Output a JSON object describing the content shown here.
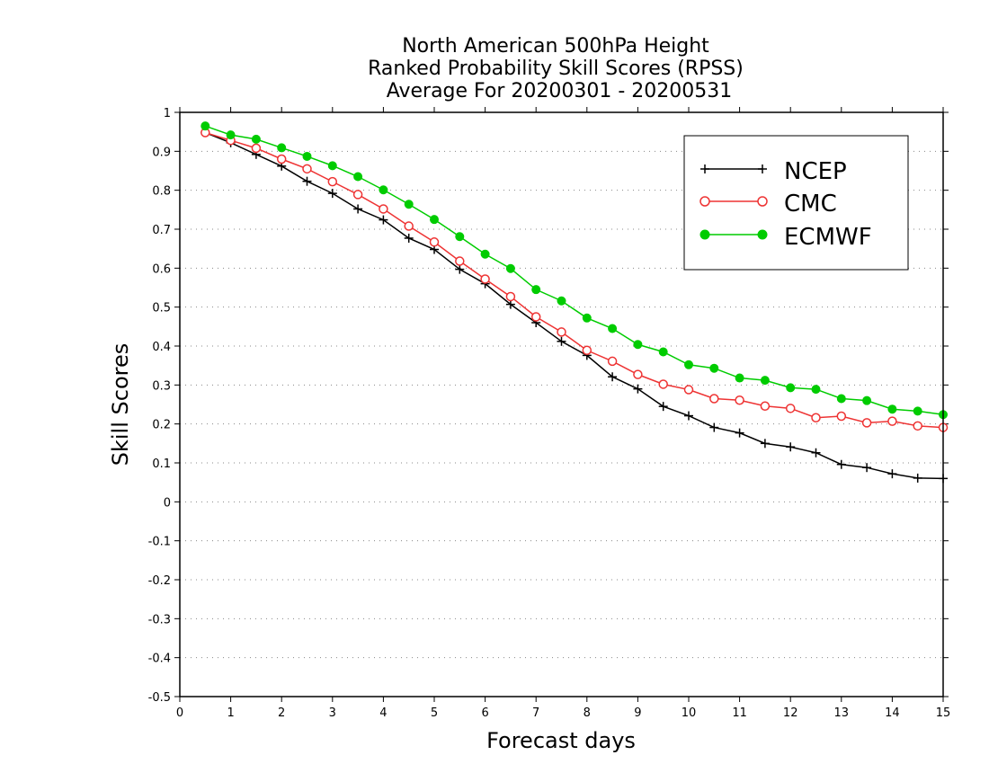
{
  "chart_data": {
    "type": "line",
    "title_lines": [
      "North American 500hPa Height",
      "Ranked Probability Skill Scores (RPSS)",
      "Average For 20200301 - 20200531"
    ],
    "xlabel": "Forecast days",
    "ylabel": "Skill Scores",
    "xlim": [
      0,
      15
    ],
    "ylim": [
      -0.5,
      1
    ],
    "x_ticks": [
      0,
      1,
      2,
      3,
      4,
      5,
      6,
      7,
      8,
      9,
      10,
      11,
      12,
      13,
      14,
      15
    ],
    "y_ticks": [
      -0.5,
      -0.4,
      -0.3,
      -0.2,
      -0.1,
      0,
      0.1,
      0.2,
      0.3,
      0.4,
      0.5,
      0.6,
      0.7,
      0.8,
      0.9,
      1
    ],
    "y_tick_labels": [
      "-0.5",
      "-0.4",
      "-0.3",
      "-0.2",
      "-0.1",
      "0",
      "0.1",
      "0.2",
      "0.3",
      "0.4",
      "0.5",
      "0.6",
      "0.7",
      "0.8",
      "0.9",
      "1"
    ],
    "grid": "horizontal dotted",
    "legend_position": "top-right",
    "x": [
      0.5,
      1.0,
      1.5,
      2.0,
      2.5,
      3.0,
      3.5,
      4.0,
      4.5,
      5.0,
      5.5,
      6.0,
      6.5,
      7.0,
      7.5,
      8.0,
      8.5,
      9.0,
      9.5,
      10.0,
      10.5,
      11.0,
      11.5,
      12.0,
      12.5,
      13.0,
      13.5,
      14.0,
      14.5,
      15.0
    ],
    "series": [
      {
        "name": "NCEP",
        "color": "#000000",
        "marker": "plus",
        "values": [
          0.948,
          0.922,
          0.892,
          0.862,
          0.823,
          0.792,
          0.752,
          0.724,
          0.677,
          0.648,
          0.597,
          0.56,
          0.507,
          0.46,
          0.412,
          0.376,
          0.321,
          0.29,
          0.245,
          0.221,
          0.191,
          0.177,
          0.15,
          0.141,
          0.126,
          0.096,
          0.088,
          0.072,
          0.061,
          0.06
        ]
      },
      {
        "name": "CMC",
        "color": "#ee3333",
        "marker": "open-circle",
        "values": [
          0.948,
          0.928,
          0.908,
          0.88,
          0.855,
          0.822,
          0.789,
          0.752,
          0.708,
          0.667,
          0.618,
          0.572,
          0.527,
          0.475,
          0.436,
          0.389,
          0.361,
          0.327,
          0.302,
          0.288,
          0.265,
          0.261,
          0.246,
          0.24,
          0.216,
          0.22,
          0.203,
          0.207,
          0.195,
          0.191
        ]
      },
      {
        "name": "ECMWF",
        "color": "#00cc00",
        "marker": "filled-circle",
        "values": [
          0.965,
          0.942,
          0.931,
          0.909,
          0.887,
          0.863,
          0.835,
          0.801,
          0.764,
          0.725,
          0.681,
          0.636,
          0.599,
          0.545,
          0.516,
          0.472,
          0.445,
          0.404,
          0.385,
          0.352,
          0.343,
          0.318,
          0.312,
          0.293,
          0.289,
          0.265,
          0.26,
          0.238,
          0.233,
          0.224
        ]
      }
    ]
  }
}
